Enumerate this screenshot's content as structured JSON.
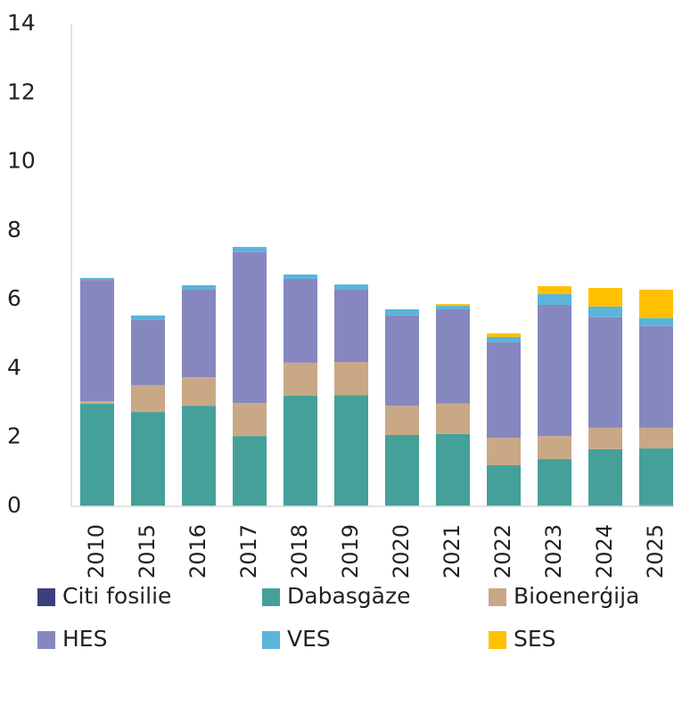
{
  "chart_data": {
    "type": "stacked_bar",
    "categories": [
      "2010",
      "2015",
      "2016",
      "2017",
      "2018",
      "2019",
      "2020",
      "2021",
      "2022",
      "2023",
      "2024",
      "2025"
    ],
    "series": [
      {
        "name": "Citi fosilie",
        "color": "#3b3f7c",
        "values": [
          0,
          0,
          0,
          0,
          0,
          0,
          0,
          0,
          0,
          0,
          0,
          0.03
        ]
      },
      {
        "name": "Dabasgāze",
        "color": "#45a09a",
        "values": [
          2.98,
          2.74,
          2.92,
          2.04,
          3.21,
          3.23,
          2.07,
          2.1,
          1.19,
          1.37,
          1.66,
          1.65
        ]
      },
      {
        "name": "Bioenerģija",
        "color": "#c9a886",
        "values": [
          0.07,
          0.78,
          0.83,
          0.96,
          0.96,
          0.96,
          0.85,
          0.88,
          0.8,
          0.67,
          0.62,
          0.6
        ]
      },
      {
        "name": "HES",
        "color": "#8787c0",
        "values": [
          3.52,
          1.89,
          2.54,
          4.38,
          2.43,
          2.1,
          2.62,
          2.74,
          2.77,
          3.81,
          3.21,
          2.95
        ]
      },
      {
        "name": "VES",
        "color": "#5ab4dc",
        "values": [
          0.06,
          0.13,
          0.13,
          0.15,
          0.13,
          0.15,
          0.18,
          0.1,
          0.16,
          0.31,
          0.31,
          0.23
        ]
      },
      {
        "name": "SES",
        "color": "#ffc000",
        "values": [
          0,
          0,
          0,
          0,
          0,
          0,
          0,
          0.05,
          0.1,
          0.23,
          0.54,
          0.83
        ]
      }
    ],
    "ylim": [
      0,
      14
    ],
    "yticks": [
      0,
      2,
      4,
      6,
      8,
      10,
      12,
      14
    ],
    "grid": false,
    "legend": "bottom"
  }
}
